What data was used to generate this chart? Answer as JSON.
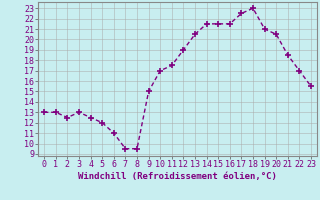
{
  "x": [
    0,
    1,
    2,
    3,
    4,
    5,
    6,
    7,
    8,
    9,
    10,
    11,
    12,
    13,
    14,
    15,
    16,
    17,
    18,
    19,
    20,
    21,
    22,
    23
  ],
  "y": [
    13,
    13,
    12.5,
    13,
    12.5,
    12,
    11,
    9.5,
    9.5,
    15,
    17,
    17.5,
    19,
    20.5,
    21.5,
    21.5,
    21.5,
    22.5,
    23,
    21,
    20.5,
    18.5,
    17,
    15.5
  ],
  "line_color": "#800080",
  "marker": "P",
  "marker_size": 2.5,
  "bg_color": "#c8eef0",
  "grid_color": "#aaaaaa",
  "xlabel": "Windchill (Refroidissement éolien,°C)",
  "xlabel_fontsize": 6.5,
  "tick_fontsize": 6,
  "ylim": [
    8.8,
    23.6
  ],
  "xlim": [
    -0.5,
    23.5
  ],
  "yticks": [
    9,
    10,
    11,
    12,
    13,
    14,
    15,
    16,
    17,
    18,
    19,
    20,
    21,
    22,
    23
  ],
  "xticks": [
    0,
    1,
    2,
    3,
    4,
    5,
    6,
    7,
    8,
    9,
    10,
    11,
    12,
    13,
    14,
    15,
    16,
    17,
    18,
    19,
    20,
    21,
    22,
    23
  ]
}
